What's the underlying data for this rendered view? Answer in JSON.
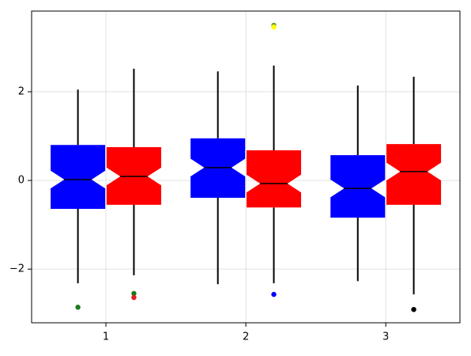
{
  "chart_data": {
    "type": "boxplot",
    "notched": true,
    "grid": true,
    "xlim": [
      0.469,
      3.53
    ],
    "xticks": [
      1,
      2,
      3
    ],
    "ylim": [
      -3.21,
      3.82
    ],
    "yticks": [
      {
        "value": -2,
        "label": "−2"
      },
      0,
      2
    ],
    "series": [
      {
        "color": "#0000ff",
        "x": [
          0.8,
          1.8,
          2.8
        ],
        "whislo": [
          -2.32,
          -2.34,
          -2.27
        ],
        "q1": [
          -0.64,
          -0.39,
          -0.84
        ],
        "med": [
          0.02,
          0.29,
          -0.18
        ],
        "q3": [
          0.8,
          0.95,
          0.57
        ],
        "whishi": [
          2.05,
          2.46,
          2.14
        ],
        "notchlo": [
          -0.18,
          0.09,
          -0.38
        ],
        "notchhi": [
          0.22,
          0.49,
          0.02
        ],
        "outliers": [
          [
            {
              "value": -2.86,
              "color": "#1a7a1a"
            }
          ],
          [],
          []
        ]
      },
      {
        "color": "#ff0000",
        "x": [
          1.2,
          2.2,
          3.2
        ],
        "whislo": [
          -2.14,
          -2.32,
          -2.57
        ],
        "q1": [
          -0.55,
          -0.61,
          -0.55
        ],
        "med": [
          0.09,
          -0.07,
          0.2
        ],
        "q3": [
          0.75,
          0.68,
          0.82
        ],
        "whishi": [
          2.52,
          2.59,
          2.34
        ],
        "notchlo": [
          -0.11,
          -0.27,
          0.0
        ],
        "notchhi": [
          0.29,
          0.13,
          0.4
        ],
        "outliers": [
          [
            {
              "value": -2.55,
              "color": "#1a7a1a"
            },
            {
              "value": -2.64,
              "color": "#e02020"
            }
          ],
          [
            {
              "value": 3.5,
              "color": "#6a9a2a"
            },
            {
              "value": 3.46,
              "color": "#ffff00"
            },
            {
              "value": -2.57,
              "color": "#0000ff"
            }
          ],
          [
            {
              "value": -2.91,
              "color": "#000000"
            }
          ]
        ]
      }
    ]
  }
}
